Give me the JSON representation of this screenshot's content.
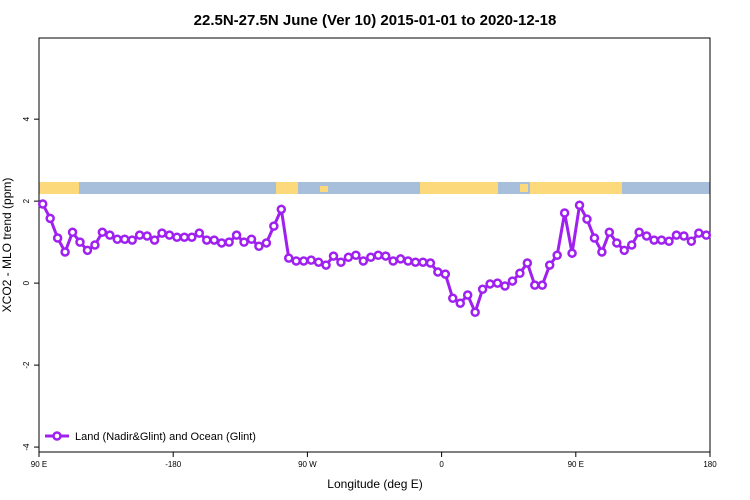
{
  "chart_data": {
    "type": "line",
    "title": "22.5N-27.5N June (Ver 10)   2015-01-01 to 2020-12-18",
    "x_label": "Longitude (deg E)",
    "y_label": "XCO2 - MLO trend (ppm)",
    "xlim": [
      -270,
      180
    ],
    "ylim": [
      -4.12,
      5.98
    ],
    "xticks": [
      {
        "value": -270,
        "label": "90 E"
      },
      -180,
      {
        "value": -90,
        "label": "90 W"
      },
      0,
      {
        "value": 90,
        "label": "90 E"
      },
      180
    ],
    "yticks": [
      -4,
      -2,
      0,
      2,
      4
    ],
    "legend": "bottom-left",
    "x": [
      -267.5,
      -262.5,
      -257.5,
      -252.5,
      -247.5,
      -242.5,
      -237.5,
      -232.5,
      -227.5,
      -222.5,
      -217.5,
      -212.5,
      -207.5,
      -202.5,
      -197.5,
      -192.5,
      -187.5,
      -182.5,
      -177.5,
      -172.5,
      -167.5,
      -162.5,
      -157.5,
      -152.5,
      -147.5,
      -142.5,
      -137.5,
      -132.5,
      -127.5,
      -122.5,
      -117.5,
      -112.5,
      -107.5,
      -102.5,
      -97.5,
      -92.5,
      -87.5,
      -82.5,
      -77.5,
      -72.5,
      -67.5,
      -62.5,
      -57.5,
      -52.5,
      -47.5,
      -42.5,
      -37.5,
      -32.5,
      -27.5,
      -22.5,
      -17.5,
      -12.5,
      -7.5,
      -2.5,
      2.5,
      7.5,
      12.5,
      17.5,
      22.5,
      27.5,
      32.5,
      37.5,
      42.5,
      47.5,
      52.5,
      57.5,
      62.5,
      67.5,
      72.5,
      77.5,
      82.5,
      87.5,
      92.5,
      97.5,
      102.5,
      107.5,
      112.5,
      117.5,
      122.5,
      127.5,
      132.5,
      137.5,
      142.5,
      147.5,
      152.5,
      157.5,
      162.5,
      167.5,
      172.5,
      177.5
    ],
    "series": [
      {
        "name": "Land (Nadir&Glint) and Ocean (Glint)",
        "color": "#a020f0",
        "values": [
          1.93,
          1.58,
          1.1,
          0.76,
          1.24,
          1.0,
          0.8,
          0.93,
          1.24,
          1.17,
          1.07,
          1.07,
          1.05,
          1.17,
          1.15,
          1.05,
          1.22,
          1.17,
          1.12,
          1.12,
          1.12,
          1.22,
          1.05,
          1.05,
          0.98,
          1.0,
          1.17,
          1.0,
          1.07,
          0.9,
          0.98,
          1.39,
          1.8,
          0.61,
          0.54,
          0.54,
          0.56,
          0.51,
          0.44,
          0.66,
          0.51,
          0.63,
          0.68,
          0.54,
          0.63,
          0.68,
          0.66,
          0.54,
          0.59,
          0.54,
          0.51,
          0.51,
          0.49,
          0.27,
          0.22,
          -0.37,
          -0.49,
          -0.29,
          -0.71,
          -0.15,
          -0.02,
          0.0,
          -0.07,
          0.05,
          0.24,
          0.49,
          -0.05,
          -0.05,
          0.44,
          0.68,
          1.71,
          0.73,
          1.9,
          1.56,
          1.1,
          0.76,
          1.24,
          0.98,
          0.8,
          0.93,
          1.24,
          1.15,
          1.05,
          1.05,
          1.02,
          1.17,
          1.15,
          1.02,
          1.22,
          1.17
        ]
      }
    ]
  }
}
